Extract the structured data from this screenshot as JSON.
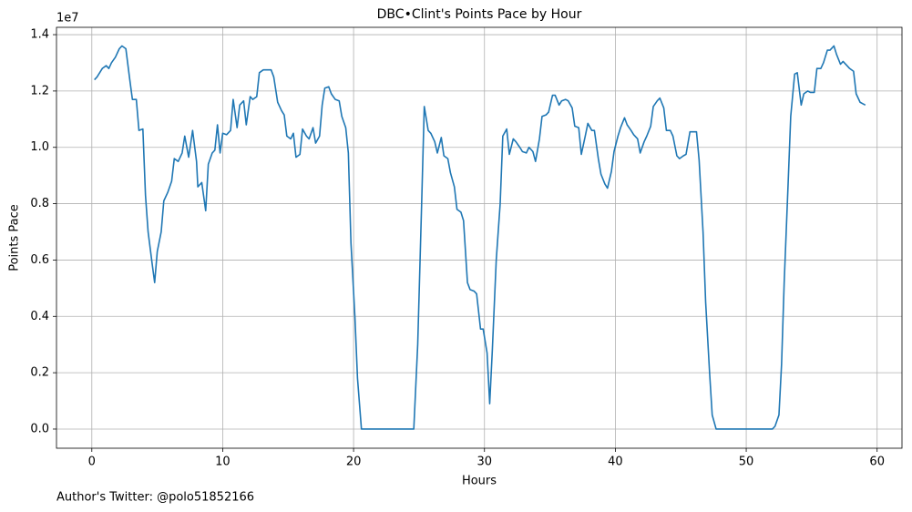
{
  "chart_data": {
    "type": "line",
    "title": "DBC•Clint's Points Pace by Hour",
    "xlabel": "Hours",
    "ylabel": "Points Pace",
    "y_offset_label": "1e7",
    "footnote": "Author's Twitter: @polo51852166",
    "color": "#1f77b4",
    "grid": true,
    "xlim": [
      -2.7,
      61.9
    ],
    "ylim": [
      -0.068,
      1.426
    ],
    "xticks": [
      0,
      10,
      20,
      30,
      40,
      50,
      60
    ],
    "yticks": [
      {
        "value": 0,
        "label": "0.0"
      },
      0.2,
      0.4,
      0.6,
      0.8,
      {
        "value": 1,
        "label": "1.0"
      },
      1.2,
      1.4
    ],
    "x": [
      0.2,
      0.4,
      0.8,
      1.1,
      1.3,
      1.5,
      1.8,
      2.1,
      2.3,
      2.6,
      2.9,
      3.1,
      3.4,
      3.6,
      3.9,
      4.1,
      4.3,
      4.6,
      4.8,
      5.0,
      5.3,
      5.5,
      5.8,
      6.1,
      6.3,
      6.6,
      6.9,
      7.1,
      7.4,
      7.7,
      8.0,
      8.1,
      8.4,
      8.7,
      8.9,
      9.2,
      9.4,
      9.6,
      9.8,
      10.0,
      10.3,
      10.6,
      10.8,
      11.1,
      11.3,
      11.6,
      11.8,
      12.1,
      12.3,
      12.6,
      12.8,
      13.1,
      13.4,
      13.7,
      13.9,
      14.2,
      14.5,
      14.7,
      14.9,
      15.2,
      15.4,
      15.6,
      15.9,
      16.1,
      16.4,
      16.6,
      16.9,
      17.1,
      17.4,
      17.6,
      17.8,
      18.1,
      18.3,
      18.6,
      18.9,
      19.1,
      19.4,
      19.6,
      19.8,
      20.1,
      20.3,
      20.6,
      24.6,
      24.9,
      25.2,
      25.4,
      25.7,
      25.9,
      26.2,
      26.4,
      26.7,
      26.9,
      27.2,
      27.4,
      27.7,
      27.9,
      28.2,
      28.4,
      28.7,
      28.9,
      29.2,
      29.4,
      29.7,
      29.9,
      30.2,
      30.4,
      30.6,
      30.9,
      31.2,
      31.4,
      31.7,
      31.9,
      32.2,
      32.4,
      32.7,
      32.9,
      33.2,
      33.4,
      33.7,
      33.9,
      34.2,
      34.4,
      34.7,
      34.9,
      35.2,
      35.4,
      35.7,
      35.9,
      36.2,
      36.4,
      36.7,
      36.9,
      37.2,
      37.4,
      37.7,
      37.9,
      38.2,
      38.4,
      38.7,
      38.9,
      39.2,
      39.4,
      39.7,
      39.9,
      40.2,
      40.4,
      40.7,
      40.9,
      41.2,
      41.4,
      41.7,
      41.9,
      42.2,
      42.4,
      42.7,
      42.9,
      43.2,
      43.4,
      43.7,
      43.9,
      44.2,
      44.4,
      44.7,
      44.9,
      45.2,
      45.4,
      45.7,
      45.9,
      46.2,
      46.4,
      46.7,
      46.9,
      47.2,
      47.4,
      47.7,
      52.0,
      52.2,
      52.5,
      52.7,
      52.9,
      53.2,
      53.4,
      53.7,
      53.9,
      54.2,
      54.4,
      54.7,
      54.9,
      55.2,
      55.4,
      55.7,
      55.9,
      56.2,
      56.4,
      56.7,
      56.9,
      57.2,
      57.4,
      57.7,
      57.9,
      58.2,
      58.4,
      58.7,
      58.9,
      59.1
    ],
    "values": [
      1.24,
      1.25,
      1.28,
      1.29,
      1.28,
      1.3,
      1.32,
      1.35,
      1.36,
      1.35,
      1.24,
      1.17,
      1.17,
      1.06,
      1.065,
      0.83,
      0.7,
      0.59,
      0.52,
      0.63,
      0.7,
      0.81,
      0.84,
      0.88,
      0.96,
      0.95,
      0.98,
      1.04,
      0.965,
      1.06,
      0.95,
      0.86,
      0.875,
      0.775,
      0.94,
      0.98,
      0.99,
      1.08,
      0.98,
      1.05,
      1.045,
      1.06,
      1.17,
      1.07,
      1.15,
      1.165,
      1.08,
      1.18,
      1.17,
      1.18,
      1.265,
      1.275,
      1.275,
      1.275,
      1.25,
      1.16,
      1.13,
      1.115,
      1.04,
      1.03,
      1.05,
      0.965,
      0.975,
      1.065,
      1.04,
      1.03,
      1.07,
      1.015,
      1.04,
      1.15,
      1.21,
      1.215,
      1.19,
      1.17,
      1.165,
      1.11,
      1.07,
      0.98,
      0.66,
      0.4,
      0.18,
      0.0,
      0.0,
      0.3,
      0.8,
      1.145,
      1.06,
      1.05,
      1.02,
      0.98,
      1.035,
      0.97,
      0.96,
      0.91,
      0.86,
      0.78,
      0.77,
      0.74,
      0.52,
      0.495,
      0.49,
      0.48,
      0.355,
      0.355,
      0.27,
      0.09,
      0.28,
      0.6,
      0.8,
      1.04,
      1.065,
      0.975,
      1.03,
      1.02,
      1.0,
      0.985,
      0.98,
      1.0,
      0.985,
      0.95,
      1.03,
      1.11,
      1.115,
      1.125,
      1.185,
      1.185,
      1.15,
      1.165,
      1.17,
      1.165,
      1.14,
      1.075,
      1.07,
      0.975,
      1.04,
      1.085,
      1.06,
      1.06,
      0.96,
      0.905,
      0.87,
      0.855,
      0.915,
      0.985,
      1.04,
      1.07,
      1.105,
      1.08,
      1.06,
      1.045,
      1.03,
      0.98,
      1.02,
      1.04,
      1.075,
      1.145,
      1.165,
      1.175,
      1.14,
      1.06,
      1.06,
      1.04,
      0.97,
      0.96,
      0.97,
      0.975,
      1.055,
      1.055,
      1.055,
      0.955,
      0.7,
      0.45,
      0.2,
      0.05,
      0.0,
      0.0,
      0.01,
      0.05,
      0.23,
      0.52,
      0.87,
      1.11,
      1.26,
      1.265,
      1.15,
      1.19,
      1.2,
      1.195,
      1.195,
      1.28,
      1.28,
      1.3,
      1.345,
      1.345,
      1.36,
      1.33,
      1.295,
      1.305,
      1.29,
      1.28,
      1.27,
      1.19,
      1.16,
      1.155,
      1.15
    ]
  }
}
